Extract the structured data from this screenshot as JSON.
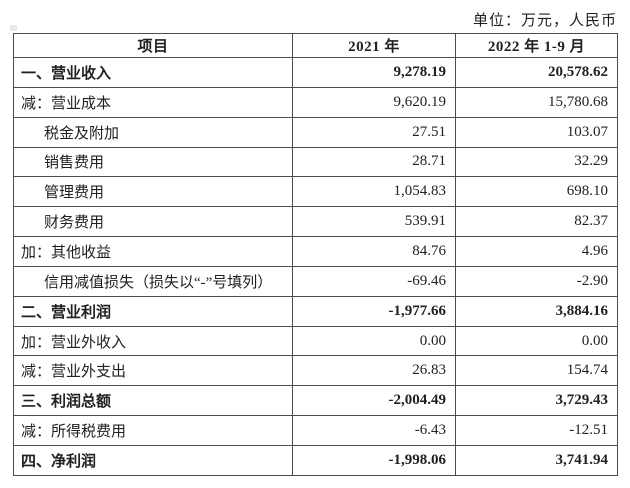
{
  "meta": {
    "unit_note": "单位：万元，人民币"
  },
  "table": {
    "headers": [
      "项目",
      "2021 年",
      "2022 年 1-9 月"
    ],
    "rows": [
      {
        "label": "一、营业收入",
        "v2021": "9,278.19",
        "v2022": "20,578.62",
        "bold": true,
        "indent": 0
      },
      {
        "label": "减：营业成本",
        "v2021": "9,620.19",
        "v2022": "15,780.68",
        "bold": false,
        "indent": 0
      },
      {
        "label": "税金及附加",
        "v2021": "27.51",
        "v2022": "103.07",
        "bold": false,
        "indent": 1
      },
      {
        "label": "销售费用",
        "v2021": "28.71",
        "v2022": "32.29",
        "bold": false,
        "indent": 1
      },
      {
        "label": "管理费用",
        "v2021": "1,054.83",
        "v2022": "698.10",
        "bold": false,
        "indent": 1
      },
      {
        "label": "财务费用",
        "v2021": "539.91",
        "v2022": "82.37",
        "bold": false,
        "indent": 1
      },
      {
        "label": "加：其他收益",
        "v2021": "84.76",
        "v2022": "4.96",
        "bold": false,
        "indent": 0
      },
      {
        "label": "信用减值损失（损失以“-”号填列）",
        "v2021": "-69.46",
        "v2022": "-2.90",
        "bold": false,
        "indent": 1
      },
      {
        "label": "二、营业利润",
        "v2021": "-1,977.66",
        "v2022": "3,884.16",
        "bold": true,
        "indent": 0
      },
      {
        "label": "加：营业外收入",
        "v2021": "0.00",
        "v2022": "0.00",
        "bold": false,
        "indent": 0
      },
      {
        "label": "减：营业外支出",
        "v2021": "26.83",
        "v2022": "154.74",
        "bold": false,
        "indent": 0
      },
      {
        "label": "三、利润总额",
        "v2021": "-2,004.49",
        "v2022": "3,729.43",
        "bold": true,
        "indent": 0
      },
      {
        "label": "减：所得税费用",
        "v2021": "-6.43",
        "v2022": "-12.51",
        "bold": false,
        "indent": 0
      },
      {
        "label": "四、净利润",
        "v2021": "-1,998.06",
        "v2022": "3,741.94",
        "bold": true,
        "indent": 0
      }
    ]
  }
}
